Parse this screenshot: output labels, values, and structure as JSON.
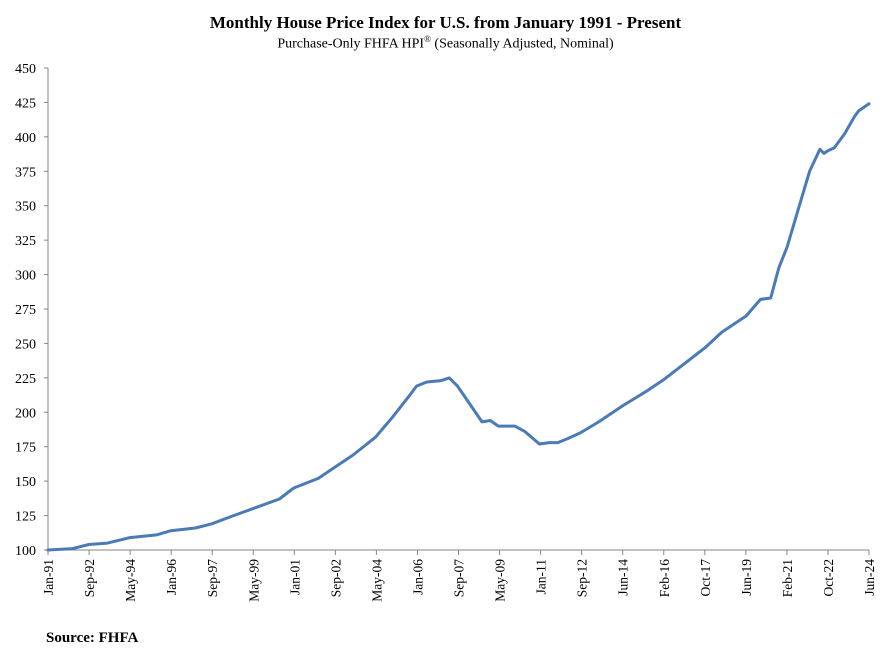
{
  "chart_data": {
    "type": "line",
    "title": "Monthly House Price Index for U.S. from January 1991 - Present",
    "subtitle": "Purchase-Only FHFA HPI",
    "subtitle_mark": "®",
    "subtitle_suffix": " (Seasonally Adjusted, Nominal)",
    "xlabel": "",
    "ylabel": "",
    "ylim": [
      100,
      450
    ],
    "yticks": [
      100,
      125,
      150,
      175,
      200,
      225,
      250,
      275,
      300,
      325,
      350,
      375,
      400,
      425,
      450
    ],
    "xticks": [
      "Jan-91",
      "Sep-92",
      "May-94",
      "Jan-96",
      "Sep-97",
      "May-99",
      "Jan-01",
      "Sep-02",
      "May-04",
      "Jan-06",
      "Sep-07",
      "May-09",
      "Jan-11",
      "Sep-12",
      "Jun-14",
      "Feb-16",
      "Oct-17",
      "Jun-19",
      "Feb-21",
      "Oct-22",
      "Jun-24"
    ],
    "grid": false,
    "legend": "none",
    "color": "#4a7ab8",
    "series": [
      {
        "x": [
          "1991-01",
          "1992-01",
          "1992-09",
          "1993-06",
          "1994-05",
          "1995-06",
          "1996-01",
          "1997-01",
          "1997-09",
          "1998-06",
          "1999-05",
          "2000-06",
          "2001-01",
          "2002-01",
          "2002-09",
          "2003-06",
          "2004-05",
          "2005-01",
          "2005-09",
          "2006-01",
          "2006-06",
          "2007-01",
          "2007-05",
          "2007-09",
          "2008-03",
          "2008-09",
          "2009-01",
          "2009-05",
          "2010-01",
          "2010-06",
          "2011-01",
          "2011-06",
          "2011-10",
          "2012-03",
          "2012-09",
          "2013-06",
          "2014-06",
          "2015-06",
          "2016-02",
          "2016-09",
          "2017-10",
          "2018-06",
          "2019-06",
          "2020-01",
          "2020-06",
          "2020-10",
          "2021-02",
          "2021-07",
          "2022-01",
          "2022-06",
          "2022-08",
          "2022-10",
          "2023-01",
          "2023-06",
          "2023-11",
          "2024-01",
          "2024-06"
        ],
        "y": [
          100,
          101,
          104,
          105,
          109,
          111,
          114,
          116,
          119,
          124,
          130,
          137,
          145,
          152,
          160,
          169,
          182,
          196,
          211,
          219,
          222,
          223,
          225,
          219,
          206,
          193,
          194,
          190,
          190,
          186,
          177,
          178,
          178,
          181,
          185,
          193,
          205,
          216,
          224,
          232,
          247,
          258,
          270,
          282,
          283,
          305,
          320,
          345,
          375,
          391,
          388,
          390,
          392,
          402,
          415,
          419,
          424
        ]
      }
    ]
  },
  "source": "Source: FHFA"
}
